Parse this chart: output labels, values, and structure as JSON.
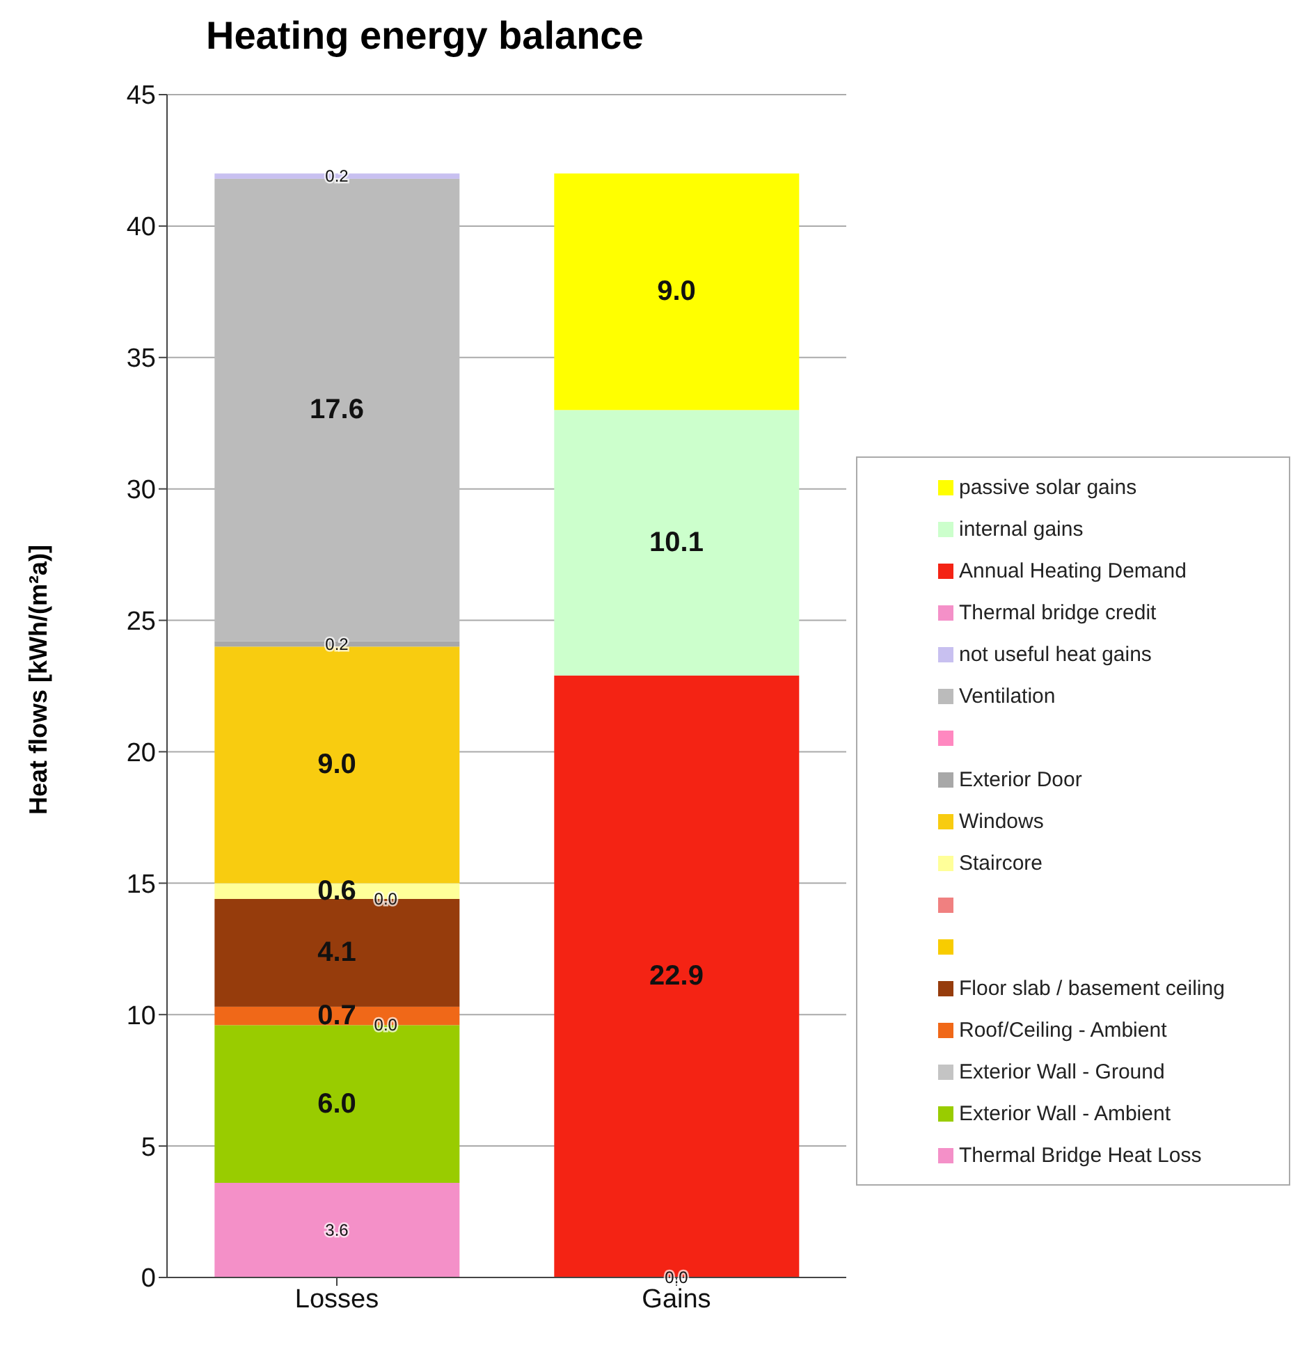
{
  "chart_data": {
    "type": "bar",
    "title": "Heating energy balance",
    "ylabel": "Heat flows [kWh/(m²a)]",
    "categories": [
      "Losses",
      "Gains"
    ],
    "stacked": true,
    "ylim": [
      0,
      45
    ],
    "yticks": [
      0,
      5,
      10,
      15,
      20,
      25,
      30,
      35,
      40,
      45
    ],
    "grid": "y",
    "legend": "right",
    "annotations": [
      {
        "text": "0.0",
        "x": "Losses",
        "y": 9.6
      },
      {
        "text": "0.0",
        "x": "Losses",
        "y": 14.4
      },
      {
        "text": "0.0",
        "x": "Gains",
        "y": 0
      }
    ],
    "series": [
      {
        "name": "Thermal Bridge Heat Loss",
        "color": "#f490c8",
        "values": [
          3.6,
          null
        ],
        "value_labels": [
          "3.6",
          null
        ]
      },
      {
        "name": "Exterior Wall - Ambient",
        "color": "#99cc00",
        "values": [
          6.0,
          null
        ],
        "value_labels": [
          "6.0",
          null
        ]
      },
      {
        "name": "Exterior Wall - Ground",
        "color": "#c4c4c4",
        "values": [
          0.0,
          null
        ]
      },
      {
        "name": "Roof/Ceiling - Ambient",
        "color": "#f06818",
        "values": [
          0.7,
          null
        ],
        "value_labels": [
          "0.7",
          null
        ]
      },
      {
        "name": "Floor slab / basement ceiling",
        "color": "#963c0c",
        "values": [
          4.1,
          null
        ],
        "value_labels": [
          "4.1",
          null
        ]
      },
      {
        "name": null,
        "color": "#f8cc00",
        "values": [
          0.0,
          null
        ]
      },
      {
        "name": null,
        "color": "#f08080",
        "values": [
          null,
          null
        ],
        "value_labels": [
          null,
          null
        ]
      },
      {
        "name": "Staircore",
        "color": "#ffff99",
        "values": [
          0.6,
          null
        ],
        "value_labels": [
          "0.6",
          null
        ]
      },
      {
        "name": "Windows",
        "color": "#f8cc10",
        "values": [
          9.0,
          null
        ],
        "value_labels": [
          "9.0",
          null
        ]
      },
      {
        "name": "Exterior Door",
        "color": "#a8a8a8",
        "values": [
          0.2,
          null
        ],
        "value_labels": [
          "0.2",
          null
        ]
      },
      {
        "name": null,
        "color": "#ff88c0",
        "values": [
          null,
          null
        ],
        "value_labels": [
          null,
          null
        ]
      },
      {
        "name": "Ventilation",
        "color": "#bbbbbb",
        "values": [
          17.6,
          null
        ],
        "value_labels": [
          "17.6",
          null
        ]
      },
      {
        "name": "not useful heat gains",
        "color": "#c8c0f0",
        "values": [
          0.2,
          null
        ],
        "value_labels": [
          "0.2",
          null
        ]
      },
      {
        "name": "Thermal bridge credit",
        "color": "#f490c8",
        "values": [
          null,
          0.0
        ]
      },
      {
        "name": "Annual Heating Demand",
        "color": "#f42314",
        "values": [
          null,
          22.9
        ],
        "value_labels": [
          null,
          "22.9"
        ]
      },
      {
        "name": "internal gains",
        "color": "#ccffcc",
        "values": [
          null,
          10.1
        ],
        "value_labels": [
          null,
          "10.1"
        ]
      },
      {
        "name": "passive solar gains",
        "color": "#ffff00",
        "values": [
          null,
          9.0
        ],
        "value_labels": [
          null,
          "9.0"
        ]
      }
    ]
  }
}
